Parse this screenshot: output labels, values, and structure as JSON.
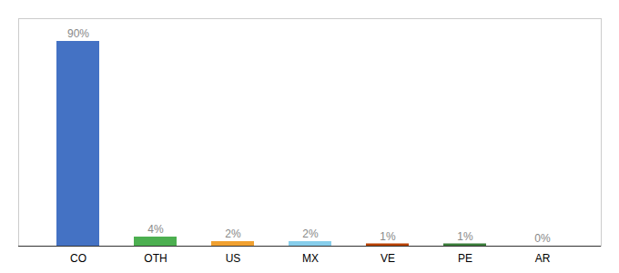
{
  "chart_data": {
    "type": "bar",
    "categories": [
      "CO",
      "OTH",
      "US",
      "MX",
      "VE",
      "PE",
      "AR"
    ],
    "values": [
      90,
      4,
      2,
      2,
      1,
      1,
      0
    ],
    "value_labels": [
      "90%",
      "4%",
      "2%",
      "2%",
      "1%",
      "1%",
      "0%"
    ],
    "colors": [
      "#4472C4",
      "#4CAF50",
      "#F0A030",
      "#87CEEB",
      "#B84000",
      "#3A7D3A",
      "#AAAAAA"
    ],
    "data_labels": true,
    "ylim": [
      0,
      100
    ],
    "tick_labels": "x",
    "grid": false
  }
}
